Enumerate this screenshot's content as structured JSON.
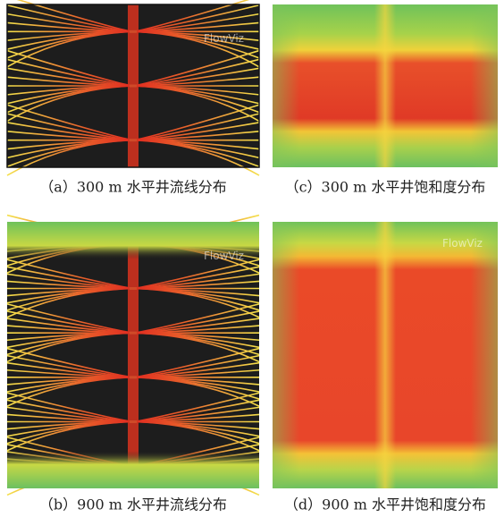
{
  "panels": [
    {
      "label": "（a）300 m 水平井流线分布",
      "watermark": "FlowViz"
    },
    {
      "label": "（c）300 m 水平井饱和度分布"
    },
    {
      "label": "（b）900 m 水平井流线分布",
      "watermark": "FlowViz"
    },
    {
      "label": "（d）900 m 水平井饱和度分布",
      "watermark": "FlowViz"
    }
  ]
}
